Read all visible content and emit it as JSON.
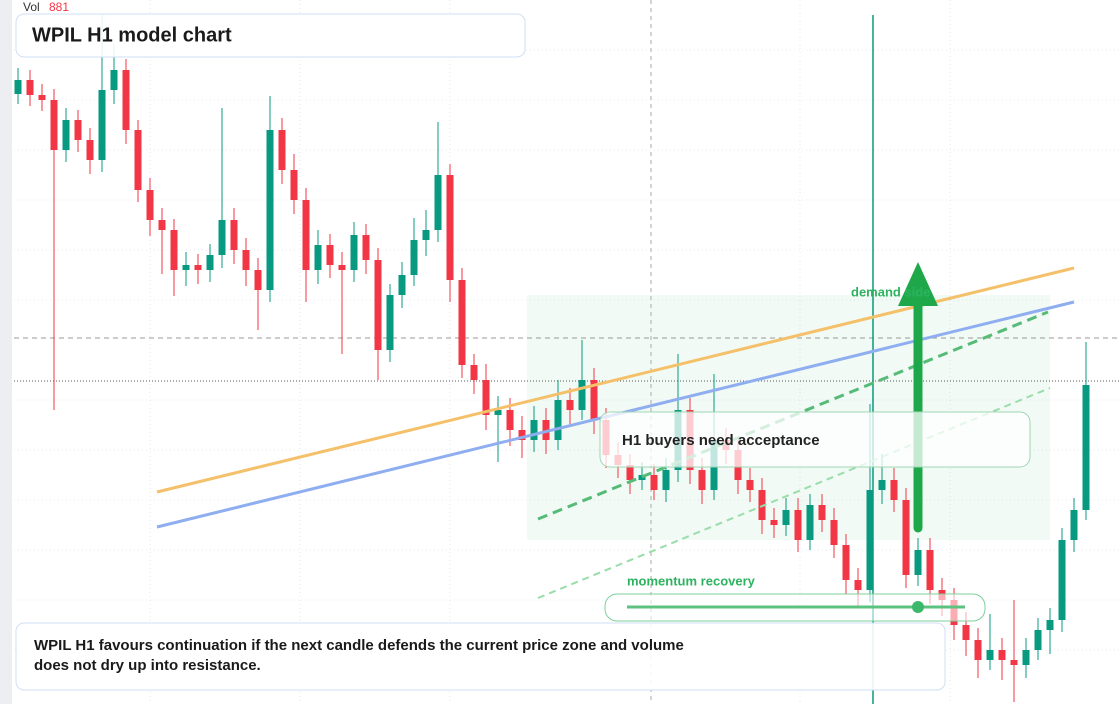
{
  "header": {
    "vol_label": "Vol",
    "vol_value": "881"
  },
  "chart_data": {
    "type": "candlestick",
    "title": "WPIL H1 model chart",
    "up_color": "#089981",
    "down_color": "#f23645",
    "ylim": [
      0,
      70.4
    ],
    "open": [
      61.0,
      62.4,
      60.9,
      60.4,
      55.4,
      58.4,
      56.4,
      54.4,
      61.4,
      63.4,
      57.4,
      51.4,
      48.4,
      47.4,
      43.4,
      43.9,
      43.4,
      44.9,
      48.4,
      45.4,
      43.4,
      41.4,
      57.4,
      53.4,
      50.4,
      43.4,
      45.9,
      43.9,
      43.4,
      46.9,
      44.4,
      35.4,
      40.9,
      42.9,
      46.4,
      47.4,
      52.9,
      42.4,
      33.9,
      32.4,
      28.9,
      29.4,
      27.4,
      26.4,
      28.4,
      26.4,
      30.4,
      29.4,
      32.4,
      28.4,
      24.9,
      23.9,
      22.4,
      22.9,
      21.4,
      23.4,
      29.4,
      23.4,
      21.4,
      26.4,
      25.4,
      22.4,
      21.4,
      18.4,
      17.9,
      19.4,
      16.4,
      19.9,
      18.4,
      15.9,
      12.4,
      11.4,
      21.4,
      22.4,
      20.4,
      12.9,
      15.4,
      11.4,
      10.4,
      7.9,
      6.4,
      4.4,
      5.4,
      4.4,
      3.9,
      5.4,
      7.4,
      8.4,
      16.4,
      19.4
    ],
    "high": [
      63.6,
      63.4,
      62.0,
      61.5,
      59.6,
      59.4,
      57.6,
      69.0,
      66.0,
      64.5,
      58.4,
      52.6,
      49.6,
      48.5,
      45.2,
      45.0,
      46.0,
      59.6,
      49.6,
      46.6,
      44.6,
      60.8,
      58.6,
      55.0,
      51.6,
      47.4,
      47.0,
      45.2,
      48.2,
      48.0,
      45.6,
      42.0,
      44.2,
      48.6,
      49.4,
      58.2,
      54.0,
      43.6,
      35.0,
      34.0,
      30.8,
      30.6,
      28.8,
      29.8,
      29.6,
      32.4,
      31.6,
      36.4,
      33.6,
      29.6,
      26.2,
      25.0,
      24.2,
      24.0,
      24.6,
      35.0,
      30.6,
      24.6,
      33.0,
      27.6,
      26.6,
      23.6,
      22.6,
      19.6,
      20.6,
      20.6,
      21.0,
      21.0,
      19.6,
      17.0,
      13.6,
      30.0,
      25.0,
      23.6,
      21.6,
      16.6,
      16.6,
      12.6,
      11.6,
      9.2,
      7.6,
      9.0,
      6.6,
      10.4,
      6.6,
      8.6,
      9.6,
      17.6,
      20.6,
      36.2
    ],
    "low": [
      60.0,
      59.8,
      59.3,
      29.4,
      54.2,
      55.2,
      53.0,
      53.2,
      60.0,
      56.0,
      50.2,
      46.8,
      43.0,
      40.8,
      41.8,
      42.0,
      42.2,
      43.6,
      44.0,
      41.8,
      37.4,
      40.2,
      52.0,
      49.0,
      40.2,
      42.0,
      42.6,
      35.0,
      42.2,
      43.0,
      32.4,
      34.2,
      39.6,
      41.8,
      44.8,
      46.2,
      40.2,
      32.6,
      31.0,
      27.4,
      24.2,
      25.8,
      24.6,
      25.2,
      25.0,
      25.4,
      28.0,
      28.4,
      27.0,
      23.6,
      22.6,
      21.0,
      21.4,
      20.4,
      20.2,
      22.2,
      22.0,
      20.0,
      20.4,
      24.0,
      21.0,
      20.2,
      17.0,
      16.6,
      16.8,
      15.2,
      15.4,
      17.2,
      14.6,
      11.0,
      9.8,
      10.2,
      20.0,
      19.2,
      11.6,
      11.8,
      10.0,
      8.8,
      6.4,
      4.8,
      2.6,
      3.4,
      2.4,
      0.2,
      2.6,
      4.4,
      5.0,
      7.2,
      15.2,
      18.4
    ],
    "close": [
      62.4,
      60.9,
      60.4,
      55.4,
      58.4,
      56.4,
      54.4,
      61.4,
      63.4,
      57.4,
      51.4,
      48.4,
      47.4,
      43.4,
      43.9,
      43.4,
      44.9,
      48.4,
      45.4,
      43.4,
      41.4,
      57.4,
      53.4,
      50.4,
      43.4,
      45.9,
      43.9,
      43.4,
      46.9,
      44.4,
      35.4,
      40.9,
      42.9,
      46.4,
      47.4,
      52.9,
      42.4,
      33.9,
      32.4,
      28.9,
      29.4,
      27.4,
      26.4,
      28.4,
      26.4,
      30.4,
      29.4,
      32.4,
      28.4,
      24.9,
      23.9,
      22.4,
      22.9,
      21.4,
      23.4,
      29.4,
      23.4,
      21.4,
      26.4,
      25.4,
      22.4,
      21.4,
      18.4,
      17.9,
      19.4,
      16.4,
      19.9,
      18.4,
      15.9,
      12.4,
      11.4,
      21.4,
      22.4,
      20.4,
      12.9,
      15.4,
      11.4,
      10.4,
      7.9,
      6.4,
      4.4,
      5.4,
      4.4,
      3.9,
      5.4,
      7.4,
      8.4,
      16.4,
      19.4,
      31.9
    ],
    "annotations": [
      "demand side",
      "H1 buyers need acceptance",
      "momentum recovery"
    ],
    "note": "WPIL H1 favours continuation if the next candle defends the current price zone and volume does not dry up into resistance."
  }
}
